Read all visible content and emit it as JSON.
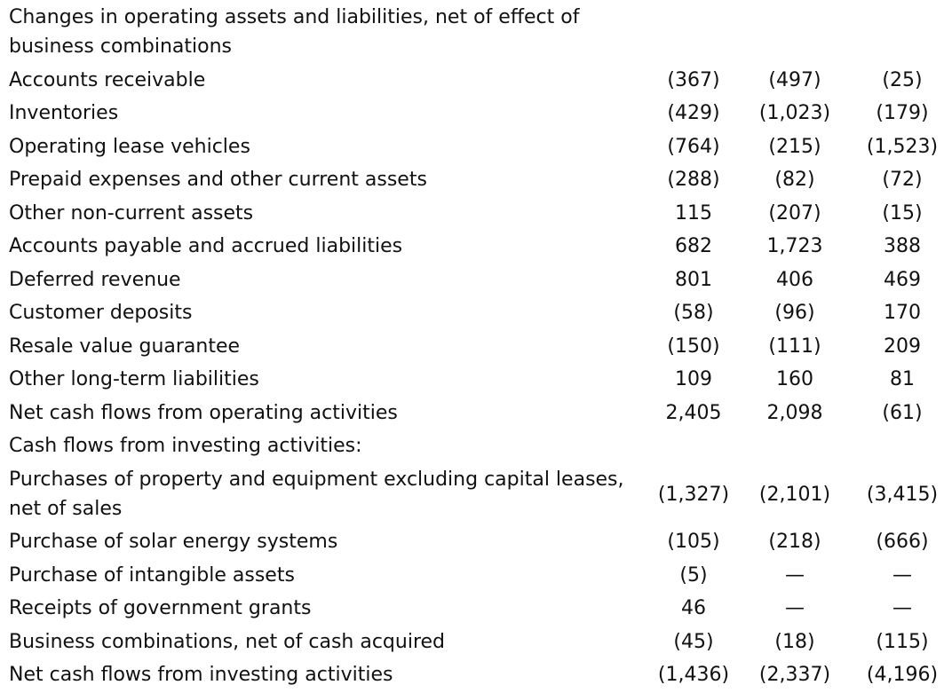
{
  "rows": [
    {
      "label": "Changes in operating assets and liabilities, net of effect of business combinations",
      "v1": "",
      "v2": "",
      "v3": ""
    },
    {
      "label": "Accounts receivable",
      "v1": "(367)",
      "v2": "(497)",
      "v3": "(25)"
    },
    {
      "label": "Inventories",
      "v1": "(429)",
      "v2": "(1,023)",
      "v3": "(179)"
    },
    {
      "label": "Operating lease vehicles",
      "v1": "(764)",
      "v2": "(215)",
      "v3": "(1,523)"
    },
    {
      "label": "Prepaid expenses and other current assets",
      "v1": "(288)",
      "v2": "(82)",
      "v3": "(72)"
    },
    {
      "label": "Other non-current assets",
      "v1": "115",
      "v2": "(207)",
      "v3": "(15)"
    },
    {
      "label": "Accounts payable and accrued liabilities",
      "v1": "682",
      "v2": "1,723",
      "v3": "388"
    },
    {
      "label": "Deferred revenue",
      "v1": "801",
      "v2": "406",
      "v3": "469"
    },
    {
      "label": "Customer deposits",
      "v1": "(58)",
      "v2": "(96)",
      "v3": "170"
    },
    {
      "label": "Resale value guarantee",
      "v1": "(150)",
      "v2": "(111)",
      "v3": "209"
    },
    {
      "label": "Other long-term liabilities",
      "v1": "109",
      "v2": "160",
      "v3": "81"
    },
    {
      "label": "Net cash flows from operating activities",
      "v1": "2,405",
      "v2": "2,098",
      "v3": "(61)"
    },
    {
      "label": "Cash flows from investing activities:",
      "v1": "",
      "v2": "",
      "v3": ""
    },
    {
      "label": "Purchases of property and equipment excluding capital leases, net of sales",
      "v1": "(1,327)",
      "v2": "(2,101)",
      "v3": "(3,415)"
    },
    {
      "label": "Purchase of solar energy systems",
      "v1": "(105)",
      "v2": "(218)",
      "v3": "(666)"
    },
    {
      "label": "Purchase of intangible assets",
      "v1": "(5)",
      "v2": "—",
      "v3": "—"
    },
    {
      "label": "Receipts of government grants",
      "v1": "46",
      "v2": "—",
      "v3": "—"
    },
    {
      "label": "Business combinations, net of cash acquired",
      "v1": "(45)",
      "v2": "(18)",
      "v3": "(115)"
    },
    {
      "label": "Net cash flows from investing activities",
      "v1": "(1,436)",
      "v2": "(2,337)",
      "v3": "(4,196)"
    }
  ]
}
